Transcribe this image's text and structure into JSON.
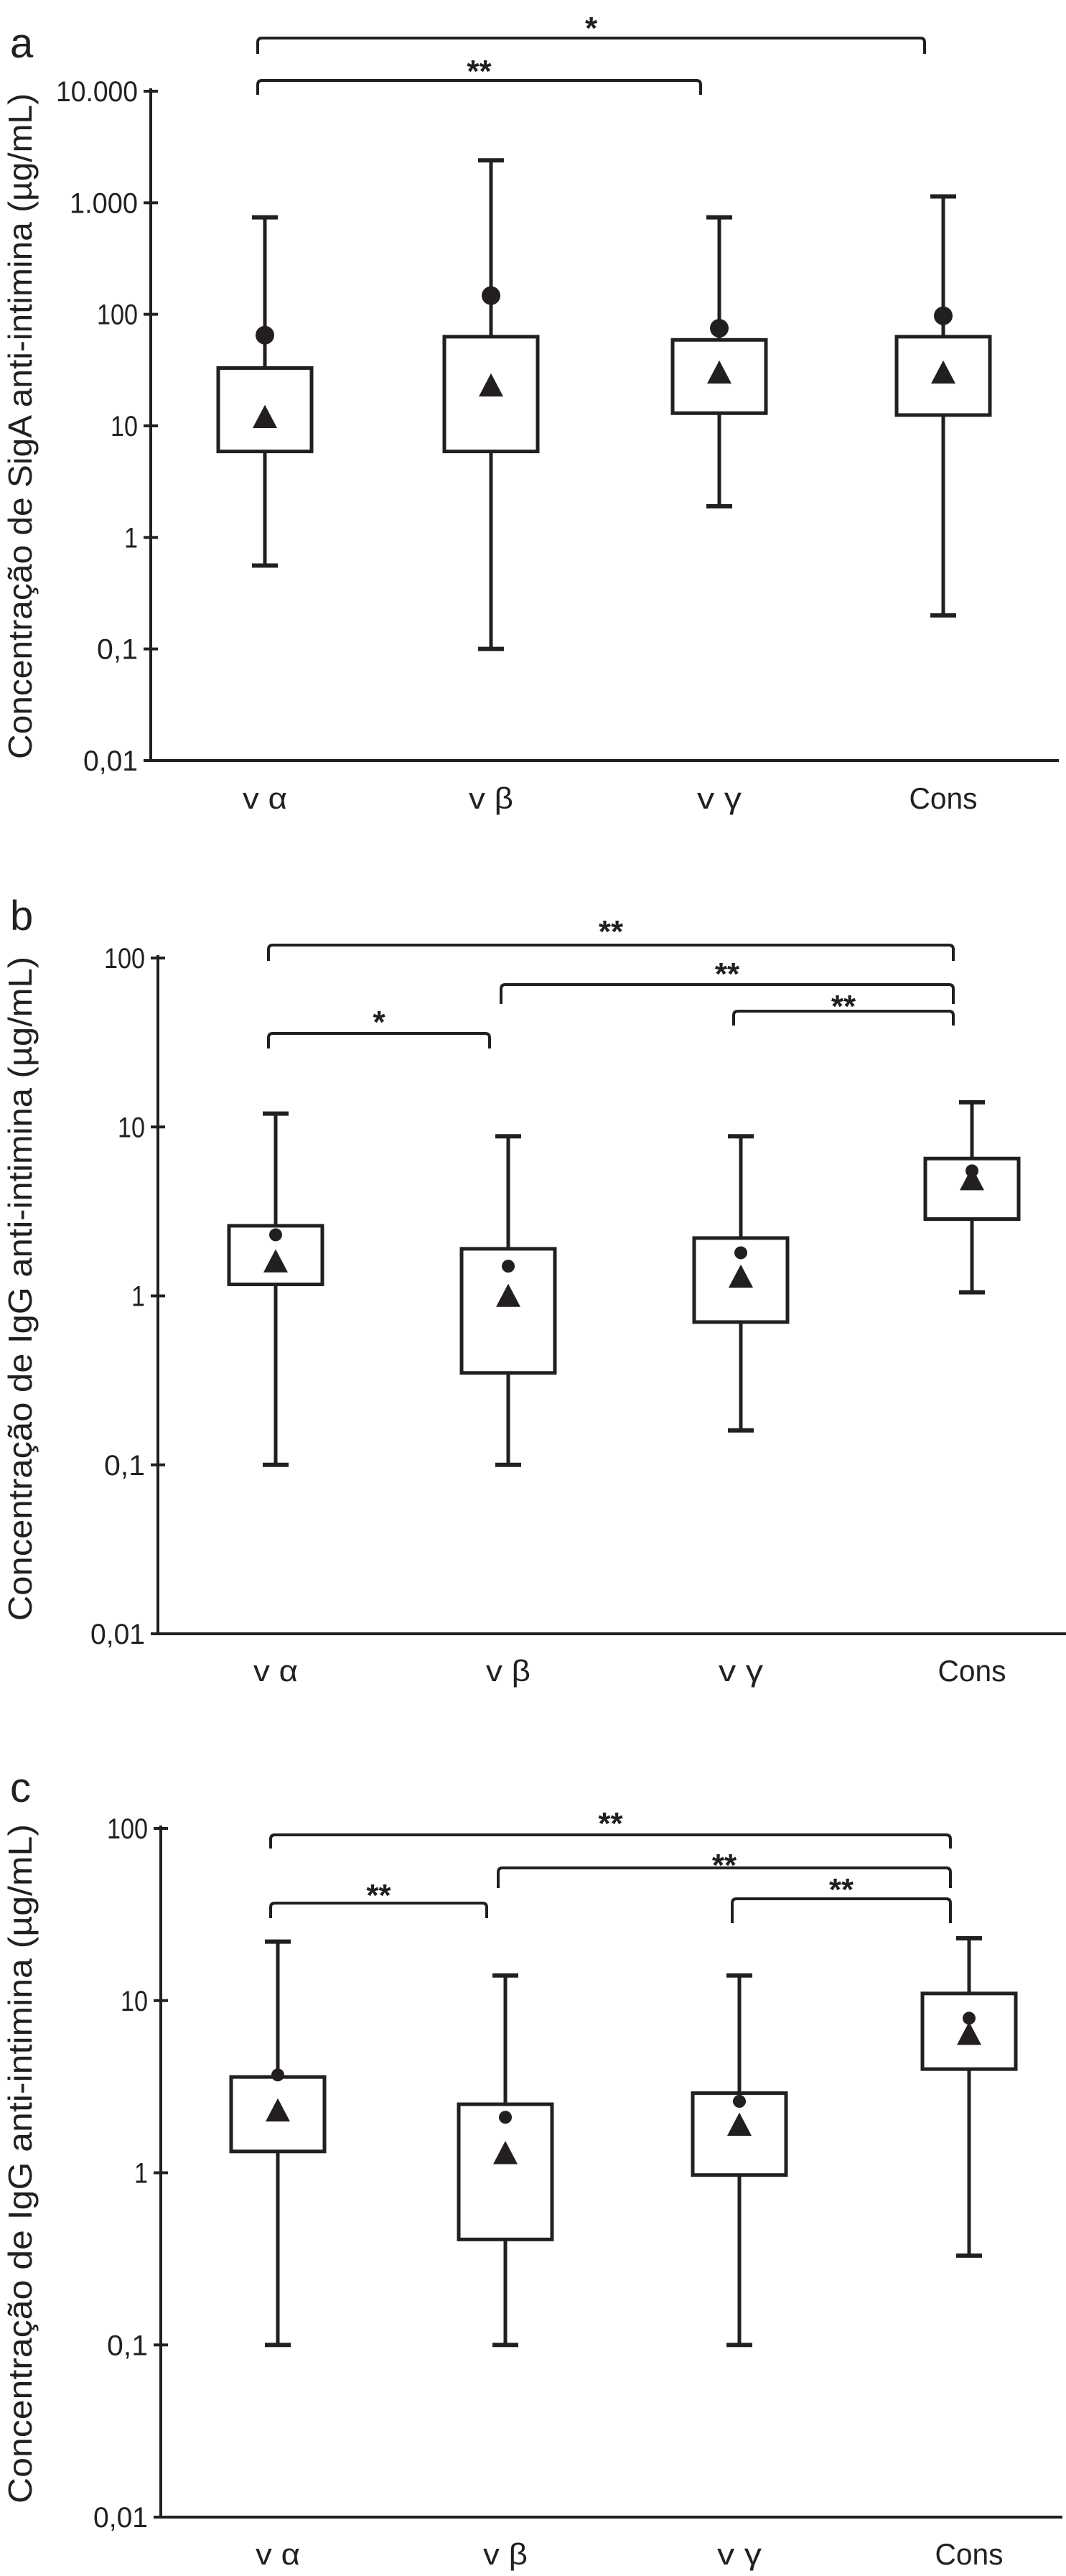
{
  "colors": {
    "ink": "#231f20",
    "background": "#ffffff",
    "box_fill": "#ffffff"
  },
  "chart_data": [
    {
      "type": "box",
      "panel_label": "a",
      "ylabel": "Concentração de SigA anti-intimina (µg/mL)",
      "yscale": "log",
      "ylim": [
        0.01,
        10000
      ],
      "yticks": [
        0.01,
        0.1,
        1,
        10,
        100,
        1000,
        10000
      ],
      "ytick_labels": [
        "0,01",
        "0,1",
        "1",
        "10",
        "100",
        "1.000",
        "10.000"
      ],
      "categories": [
        "v α",
        "v β",
        "v γ",
        "Cons"
      ],
      "boxes": [
        {
          "max": 740,
          "q3": 33,
          "q1": 5.9,
          "min": 0.56,
          "circle": 65,
          "triangle": 12
        },
        {
          "max": 2400,
          "q3": 63,
          "q1": 5.9,
          "min": 0.1,
          "circle": 147,
          "triangle": 23
        },
        {
          "max": 740,
          "q3": 59,
          "q1": 13,
          "min": 1.9,
          "circle": 75,
          "triangle": 30
        },
        {
          "max": 1140,
          "q3": 63,
          "q1": 12.5,
          "min": 0.2,
          "circle": 97,
          "triangle": 30
        }
      ],
      "significance": [
        {
          "from": 0,
          "to": 3,
          "label": "*"
        },
        {
          "from": 0,
          "to": 2,
          "label": "**"
        }
      ]
    },
    {
      "type": "box",
      "panel_label": "b",
      "ylabel": "Concentração de IgG anti-intimina  (µg/mL)",
      "yscale": "log",
      "ylim": [
        0.01,
        100
      ],
      "yticks": [
        0.01,
        0.1,
        1,
        10,
        100
      ],
      "ytick_labels": [
        "0,01",
        "0,1",
        "1",
        "10",
        "100"
      ],
      "categories": [
        "v α",
        "v β",
        "v γ",
        "Cons"
      ],
      "boxes": [
        {
          "max": 12,
          "q3": 2.6,
          "q1": 1.17,
          "min": 0.1,
          "circle": 2.3,
          "triangle": 1.6
        },
        {
          "max": 8.8,
          "q3": 1.9,
          "q1": 0.35,
          "min": 0.1,
          "circle": 1.5,
          "triangle": 1.0
        },
        {
          "max": 8.8,
          "q3": 2.2,
          "q1": 0.7,
          "min": 0.16,
          "circle": 1.8,
          "triangle": 1.3
        },
        {
          "max": 14,
          "q3": 6.5,
          "q1": 2.85,
          "min": 1.05,
          "circle": 5.5,
          "triangle": 4.9
        }
      ],
      "significance": [
        {
          "from": 0,
          "to": 3,
          "label": "**"
        },
        {
          "from": 1,
          "to": 3,
          "label": "**"
        },
        {
          "from": 2,
          "to": 3,
          "label": "**"
        },
        {
          "from": 0,
          "to": 1,
          "label": "*"
        }
      ]
    },
    {
      "type": "box",
      "panel_label": "c",
      "ylabel": "Concentração de IgG anti-intimina  (µg/mL)",
      "yscale": "log",
      "ylim": [
        0.01,
        100
      ],
      "yticks": [
        0.01,
        0.1,
        1,
        10,
        100
      ],
      "ytick_labels": [
        "0,01",
        "0,1",
        "1",
        "10",
        "100"
      ],
      "categories": [
        "v α",
        "v β",
        "v γ",
        "Cons"
      ],
      "boxes": [
        {
          "max": 22,
          "q3": 3.6,
          "q1": 1.33,
          "min": 0.1,
          "circle": 3.7,
          "triangle": 2.3
        },
        {
          "max": 14,
          "q3": 2.5,
          "q1": 0.41,
          "min": 0.1,
          "circle": 2.1,
          "triangle": 1.3
        },
        {
          "max": 14,
          "q3": 2.9,
          "q1": 0.97,
          "min": 0.1,
          "circle": 2.6,
          "triangle": 1.9
        },
        {
          "max": 23,
          "q3": 11,
          "q1": 4.0,
          "min": 0.33,
          "circle": 7.9,
          "triangle": 6.4
        }
      ],
      "significance": [
        {
          "from": 0,
          "to": 3,
          "label": "**"
        },
        {
          "from": 1,
          "to": 3,
          "label": "**"
        },
        {
          "from": 2,
          "to": 3,
          "label": "**"
        },
        {
          "from": 0,
          "to": 1,
          "label": "**"
        }
      ]
    }
  ]
}
